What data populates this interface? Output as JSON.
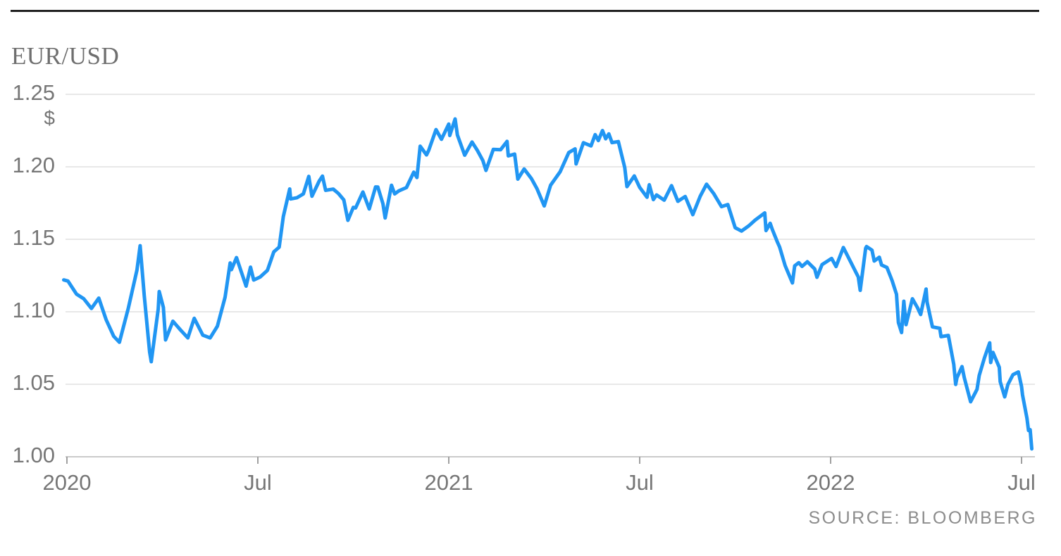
{
  "header": {
    "title": "EUR/USD"
  },
  "footer": {
    "source": "SOURCE: BLOOMBERG"
  },
  "colors": {
    "background": "#ffffff",
    "top_rule": "#222222",
    "title": "#6f6f6f",
    "line": "#2196f3",
    "grid": "#e8e8e8",
    "axis": "#cbcbcb",
    "tick": "#a0a0a0",
    "label": "#767676",
    "source": "#8c8c8c"
  },
  "chart_data": {
    "type": "line",
    "title": "EUR/USD",
    "xlabel": "",
    "ylabel": "",
    "unit_label": "$",
    "ylim": [
      1.0,
      1.25
    ],
    "xlim_months": [
      -0.15,
      30.6
    ],
    "x_unit": "months since Jan 2020",
    "grid": true,
    "legend": "none",
    "y_ticks": [
      {
        "value": 1.0,
        "label": "1.00"
      },
      {
        "value": 1.05,
        "label": "1.05"
      },
      {
        "value": 1.1,
        "label": "1.10"
      },
      {
        "value": 1.15,
        "label": "1.15"
      },
      {
        "value": 1.2,
        "label": "1.20"
      },
      {
        "value": 1.25,
        "label": "1.25"
      }
    ],
    "x_ticks": [
      {
        "t": 0,
        "label": "2020"
      },
      {
        "t": 6,
        "label": "Jul"
      },
      {
        "t": 12,
        "label": "2021"
      },
      {
        "t": 18,
        "label": "Jul"
      },
      {
        "t": 24,
        "label": "2022"
      },
      {
        "t": 30,
        "label": "Jul"
      }
    ],
    "series": [
      {
        "name": "EUR/USD spot rate",
        "points": [
          [
            -0.1,
            1.122
          ],
          [
            0.03,
            1.1212
          ],
          [
            0.3,
            1.1122
          ],
          [
            0.53,
            1.109
          ],
          [
            0.77,
            1.1023
          ],
          [
            1.0,
            1.1094
          ],
          [
            1.23,
            1.0946
          ],
          [
            1.47,
            1.0831
          ],
          [
            1.65,
            1.079
          ],
          [
            1.93,
            1.1026
          ],
          [
            2.2,
            1.1288
          ],
          [
            2.3,
            1.1456
          ],
          [
            2.43,
            1.1109
          ],
          [
            2.6,
            1.0722
          ],
          [
            2.65,
            1.0656
          ],
          [
            2.87,
            1.1019
          ],
          [
            2.9,
            1.114
          ],
          [
            3.03,
            1.103
          ],
          [
            3.1,
            1.0806
          ],
          [
            3.33,
            1.0935
          ],
          [
            3.57,
            1.0875
          ],
          [
            3.8,
            1.082
          ],
          [
            4.0,
            1.0955
          ],
          [
            4.27,
            1.0839
          ],
          [
            4.5,
            1.082
          ],
          [
            4.73,
            1.0901
          ],
          [
            4.97,
            1.1101
          ],
          [
            5.13,
            1.1337
          ],
          [
            5.17,
            1.1291
          ],
          [
            5.33,
            1.1374
          ],
          [
            5.63,
            1.1177
          ],
          [
            5.77,
            1.1308
          ],
          [
            5.87,
            1.1219
          ],
          [
            6.07,
            1.124
          ],
          [
            6.3,
            1.1286
          ],
          [
            6.5,
            1.1413
          ],
          [
            6.67,
            1.1446
          ],
          [
            6.8,
            1.1656
          ],
          [
            7.0,
            1.1847
          ],
          [
            7.03,
            1.1778
          ],
          [
            7.23,
            1.1787
          ],
          [
            7.43,
            1.1813
          ],
          [
            7.6,
            1.1934
          ],
          [
            7.7,
            1.1797
          ],
          [
            7.93,
            1.1903
          ],
          [
            8.03,
            1.1936
          ],
          [
            8.13,
            1.1838
          ],
          [
            8.37,
            1.1846
          ],
          [
            8.53,
            1.1816
          ],
          [
            8.7,
            1.1772
          ],
          [
            8.83,
            1.1631
          ],
          [
            9.0,
            1.172
          ],
          [
            9.07,
            1.1716
          ],
          [
            9.3,
            1.1826
          ],
          [
            9.5,
            1.1709
          ],
          [
            9.7,
            1.1861
          ],
          [
            9.77,
            1.186
          ],
          [
            9.93,
            1.1746
          ],
          [
            10.0,
            1.1647
          ],
          [
            10.2,
            1.1873
          ],
          [
            10.3,
            1.1813
          ],
          [
            10.43,
            1.1834
          ],
          [
            10.67,
            1.1857
          ],
          [
            10.9,
            1.1963
          ],
          [
            11.0,
            1.1926
          ],
          [
            11.1,
            1.2142
          ],
          [
            11.3,
            1.2082
          ],
          [
            11.37,
            1.2113
          ],
          [
            11.6,
            1.2257
          ],
          [
            11.77,
            1.219
          ],
          [
            12.0,
            1.2295
          ],
          [
            12.03,
            1.2216
          ],
          [
            12.2,
            1.233
          ],
          [
            12.27,
            1.222
          ],
          [
            12.5,
            1.208
          ],
          [
            12.73,
            1.2171
          ],
          [
            12.9,
            1.2112
          ],
          [
            13.07,
            1.2044
          ],
          [
            13.17,
            1.1975
          ],
          [
            13.4,
            1.212
          ],
          [
            13.63,
            1.2118
          ],
          [
            13.83,
            1.2175
          ],
          [
            13.87,
            1.2075
          ],
          [
            14.07,
            1.2088
          ],
          [
            14.17,
            1.1915
          ],
          [
            14.37,
            1.1985
          ],
          [
            14.6,
            1.1918
          ],
          [
            14.77,
            1.185
          ],
          [
            15.0,
            1.173
          ],
          [
            15.2,
            1.1873
          ],
          [
            15.5,
            1.1966
          ],
          [
            15.77,
            1.2098
          ],
          [
            15.97,
            1.2124
          ],
          [
            16.0,
            1.202
          ],
          [
            16.23,
            1.2166
          ],
          [
            16.47,
            1.2144
          ],
          [
            16.6,
            1.2222
          ],
          [
            16.7,
            1.2181
          ],
          [
            16.83,
            1.225
          ],
          [
            16.93,
            1.2193
          ],
          [
            17.03,
            1.2227
          ],
          [
            17.13,
            1.2167
          ],
          [
            17.33,
            1.2174
          ],
          [
            17.53,
            1.1994
          ],
          [
            17.6,
            1.1863
          ],
          [
            17.83,
            1.1937
          ],
          [
            18.0,
            1.1858
          ],
          [
            18.23,
            1.179
          ],
          [
            18.3,
            1.1876
          ],
          [
            18.43,
            1.1774
          ],
          [
            18.53,
            1.1806
          ],
          [
            18.77,
            1.177
          ],
          [
            19.0,
            1.187
          ],
          [
            19.2,
            1.1762
          ],
          [
            19.43,
            1.1795
          ],
          [
            19.67,
            1.167
          ],
          [
            19.9,
            1.1796
          ],
          [
            20.1,
            1.188
          ],
          [
            20.33,
            1.1814
          ],
          [
            20.57,
            1.1725
          ],
          [
            20.77,
            1.174
          ],
          [
            21.0,
            1.158
          ],
          [
            21.2,
            1.1557
          ],
          [
            21.43,
            1.1593
          ],
          [
            21.63,
            1.1633
          ],
          [
            21.93,
            1.1682
          ],
          [
            21.97,
            1.156
          ],
          [
            22.1,
            1.161
          ],
          [
            22.17,
            1.1567
          ],
          [
            22.33,
            1.1479
          ],
          [
            22.4,
            1.1445
          ],
          [
            22.57,
            1.1319
          ],
          [
            22.8,
            1.1199
          ],
          [
            22.87,
            1.1317
          ],
          [
            23.0,
            1.1339
          ],
          [
            23.1,
            1.1313
          ],
          [
            23.27,
            1.1345
          ],
          [
            23.5,
            1.1295
          ],
          [
            23.57,
            1.1238
          ],
          [
            23.73,
            1.1325
          ],
          [
            24.03,
            1.1368
          ],
          [
            24.17,
            1.1312
          ],
          [
            24.4,
            1.1443
          ],
          [
            24.63,
            1.1343
          ],
          [
            24.87,
            1.124
          ],
          [
            24.93,
            1.1148
          ],
          [
            25.1,
            1.1438
          ],
          [
            25.13,
            1.145
          ],
          [
            25.3,
            1.1425
          ],
          [
            25.37,
            1.135
          ],
          [
            25.53,
            1.1376
          ],
          [
            25.6,
            1.1323
          ],
          [
            25.77,
            1.1306
          ],
          [
            25.93,
            1.1216
          ],
          [
            26.07,
            1.1121
          ],
          [
            26.13,
            1.0926
          ],
          [
            26.23,
            1.0857
          ],
          [
            26.3,
            1.1073
          ],
          [
            26.37,
            1.0911
          ],
          [
            26.57,
            1.109
          ],
          [
            26.73,
            1.1028
          ],
          [
            26.83,
            1.0981
          ],
          [
            27.0,
            1.1157
          ],
          [
            27.03,
            1.1067
          ],
          [
            27.2,
            1.0896
          ],
          [
            27.43,
            1.0886
          ],
          [
            27.47,
            1.0828
          ],
          [
            27.7,
            1.0837
          ],
          [
            27.87,
            1.0637
          ],
          [
            27.93,
            1.0499
          ],
          [
            27.97,
            1.0545
          ],
          [
            28.13,
            1.0622
          ],
          [
            28.2,
            1.0546
          ],
          [
            28.4,
            1.0379
          ],
          [
            28.6,
            1.0465
          ],
          [
            28.67,
            1.056
          ],
          [
            28.83,
            1.068
          ],
          [
            29.0,
            1.0786
          ],
          [
            29.03,
            1.065
          ],
          [
            29.1,
            1.072
          ],
          [
            29.3,
            1.0617
          ],
          [
            29.33,
            1.0518
          ],
          [
            29.47,
            1.0413
          ],
          [
            29.57,
            1.0498
          ],
          [
            29.73,
            1.0566
          ],
          [
            29.9,
            1.0585
          ],
          [
            30.0,
            1.0484
          ],
          [
            30.03,
            1.0426
          ],
          [
            30.17,
            1.0265
          ],
          [
            30.22,
            1.0181
          ],
          [
            30.27,
            1.0187
          ],
          [
            30.32,
            1.0055
          ]
        ]
      }
    ]
  }
}
